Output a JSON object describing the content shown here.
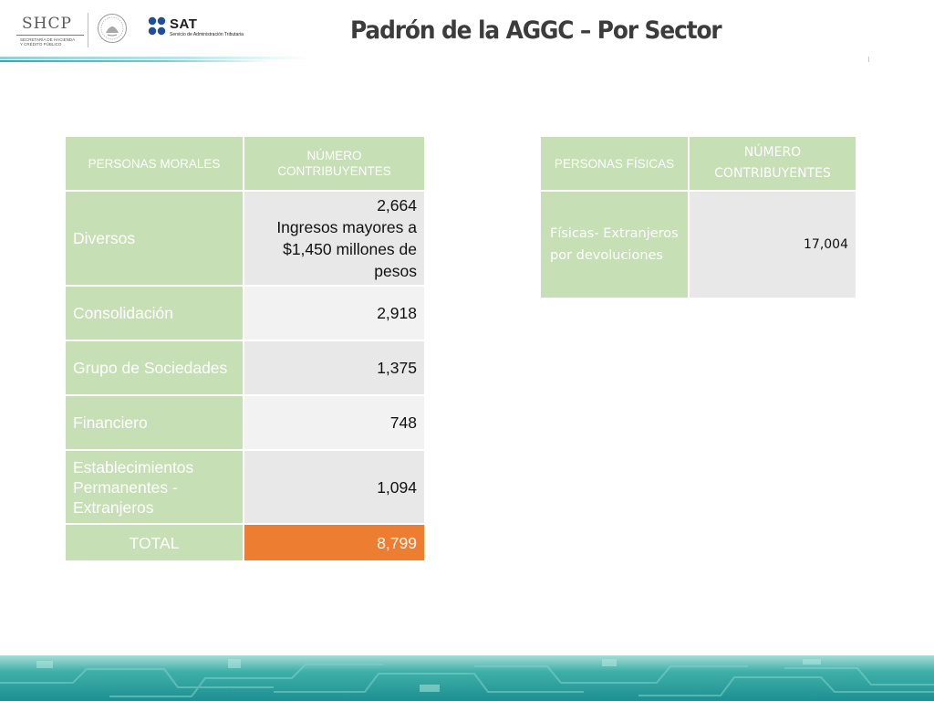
{
  "header": {
    "shcp_name": "SHCP",
    "shcp_subtitle_1": "SECRETARÍA DE HACIENDA",
    "shcp_subtitle_2": "Y CRÉDITO PÚBLICO",
    "sat_name": "SAT",
    "sat_subtitle": "Servicio de Administración Tributaria",
    "title": "Padrón de la AGGC – Por Sector"
  },
  "morales_table": {
    "headers": [
      "PERSONAS MORALES",
      "NÚMERO CONTRIBUYENTES"
    ],
    "rows": [
      {
        "label": "Diversos",
        "value": "2,664",
        "note": "Ingresos mayores a $1,450 millones  de pesos"
      },
      {
        "label": "Consolidación",
        "value": "2,918"
      },
      {
        "label": "Grupo de Sociedades",
        "value": "1,375"
      },
      {
        "label": "Financiero",
        "value": "748"
      },
      {
        "label": "Establecimientos Permanentes - Extranjeros",
        "value": "1,094"
      }
    ],
    "total": {
      "label": "TOTAL",
      "value": "8,799"
    }
  },
  "fisicas_table": {
    "headers": [
      "PERSONAS FÍSICAS",
      "NÚMERO CONTRIBUYENTES"
    ],
    "rows": [
      {
        "label": "Físicas- Extranjeros por devoluciones",
        "value": "17,004"
      }
    ]
  },
  "colors": {
    "header_cell": "#c6dfb4",
    "value_cell_dark": "#e8e8e8",
    "value_cell_light": "#f2f2f2",
    "total_accent": "#ed7d31",
    "footer_teal": "#1e8f92"
  }
}
